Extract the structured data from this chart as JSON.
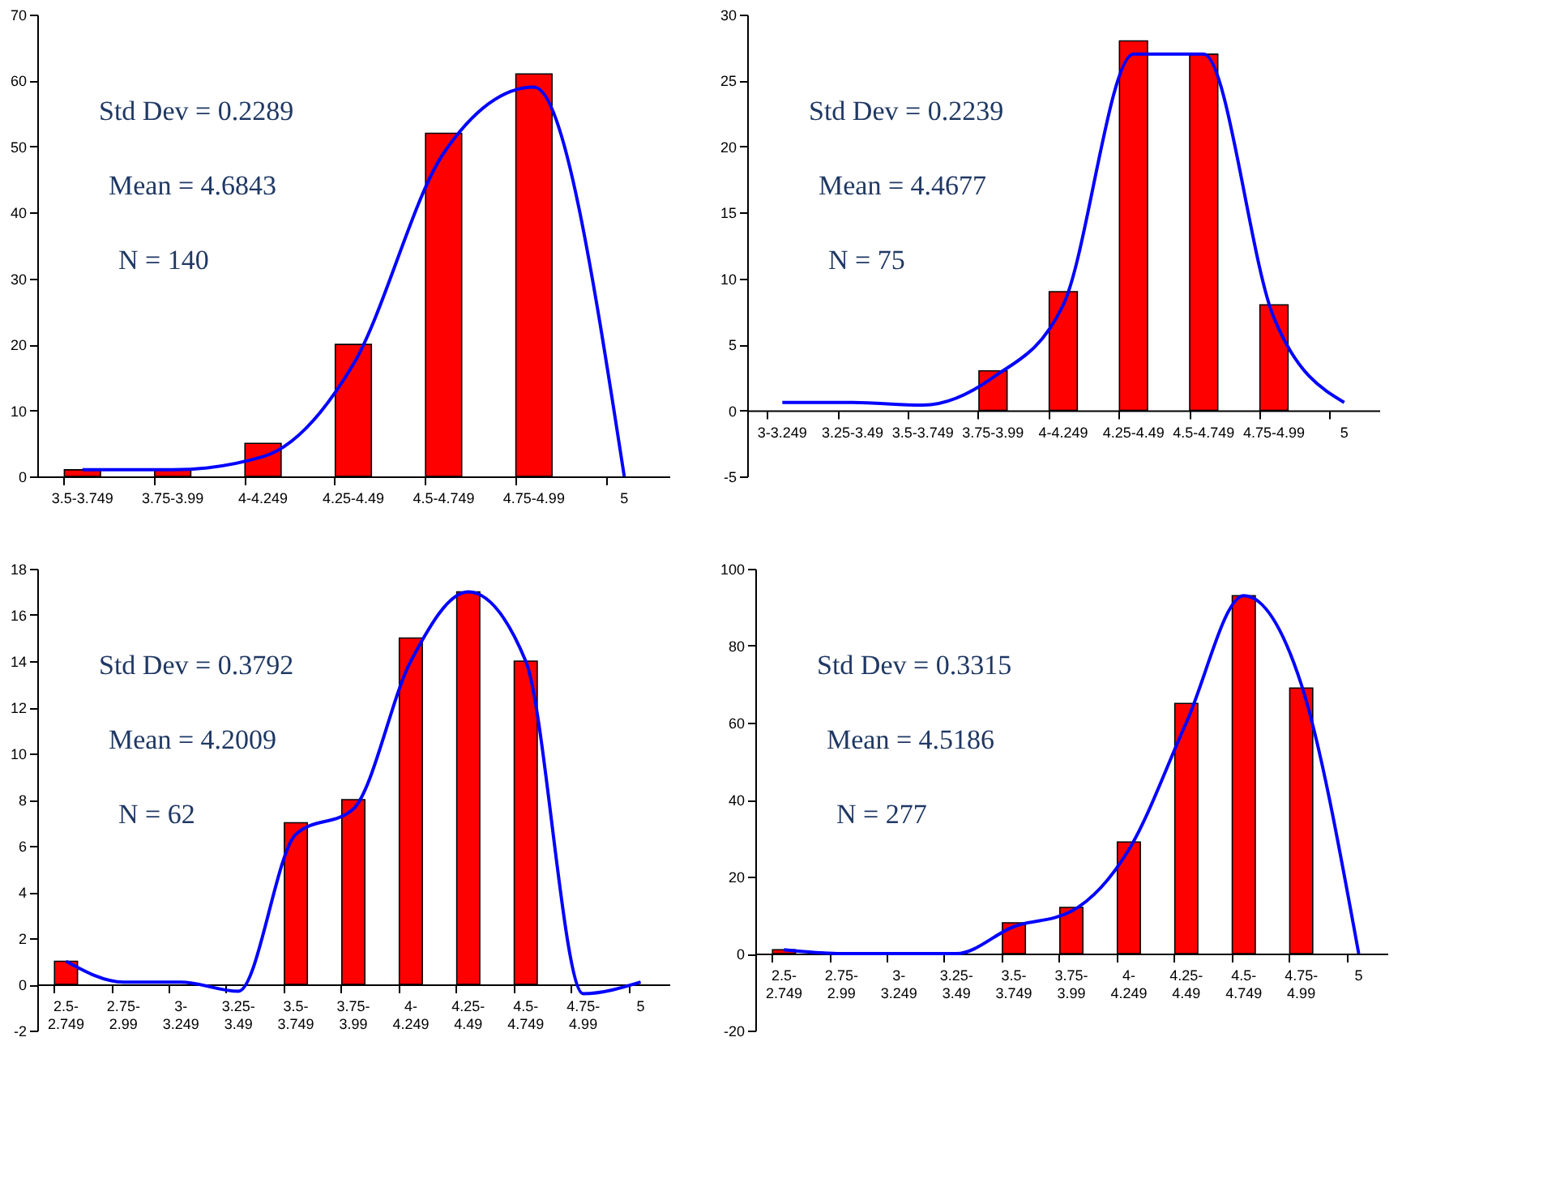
{
  "chart_data": [
    {
      "type": "bar",
      "categories": [
        "3.5-3.749",
        "3.75-3.99",
        "4-4.249",
        "4.25-4.49",
        "4.5-4.749",
        "4.75-4.99",
        "5"
      ],
      "series": [
        {
          "color": "#ff0000",
          "values": [
            1,
            1,
            5,
            20,
            52,
            61,
            0
          ]
        },
        {
          "type": "line",
          "color": "#0000ff",
          "values": [
            1,
            1,
            3,
            17,
            49,
            59,
            0
          ]
        }
      ],
      "ylim": [
        0,
        70
      ],
      "yticks": [
        0,
        10,
        20,
        30,
        40,
        50,
        60,
        70
      ],
      "grid": false,
      "annotations": [
        "Std  Dev = 0.2289",
        "Mean = 4.6843",
        "N = 140"
      ]
    },
    {
      "type": "bar",
      "categories": [
        "3-3.249",
        "3.25-3.49",
        "3.5-3.749",
        "3.75-3.99",
        "4-4.249",
        "4.25-4.49",
        "4.5-4.749",
        "4.75-4.99",
        "5"
      ],
      "series": [
        {
          "color": "#ff0000",
          "values": [
            0,
            0,
            0,
            3,
            9,
            28,
            27,
            8,
            0
          ]
        },
        {
          "type": "line",
          "color": "#0000ff",
          "values": [
            0.6,
            0.6,
            0.4,
            2.5,
            8,
            27,
            27,
            7,
            0.6
          ]
        }
      ],
      "ylim": [
        -5,
        30
      ],
      "yticks": [
        -5,
        0,
        5,
        10,
        15,
        20,
        25,
        30
      ],
      "grid": false,
      "annotations": [
        "Std  Dev = 0.2239",
        "Mean = 4.4677",
        "N = 75"
      ]
    },
    {
      "type": "bar",
      "categories": [
        "2.5-2.749",
        "2.75-2.99",
        "3-3.249",
        "3.25-3.49",
        "3.5-3.749",
        "3.75-3.99",
        "4-4.249",
        "4.25-4.49",
        "4.5-4.749",
        "4.75-4.99",
        "5"
      ],
      "series": [
        {
          "color": "#ff0000",
          "values": [
            1,
            0,
            0,
            0,
            7,
            8,
            15,
            17,
            14,
            0,
            0
          ]
        },
        {
          "type": "line",
          "color": "#0000ff",
          "values": [
            1,
            0.1,
            0.1,
            -0.3,
            6.5,
            7.6,
            14,
            17,
            14,
            -0.4,
            0.1
          ]
        }
      ],
      "ylim": [
        -2,
        18
      ],
      "yticks": [
        -2,
        0,
        2,
        4,
        6,
        8,
        10,
        12,
        14,
        16,
        18
      ],
      "grid": false,
      "annotations": [
        "Std  Dev = 0.3792",
        "Mean = 4.2009",
        "N = 62"
      ]
    },
    {
      "type": "bar",
      "categories": [
        "2.5-2.749",
        "2.75-2.99",
        "3-3.249",
        "3.25-3.49",
        "3.5-3.749",
        "3.75-3.99",
        "4-4.249",
        "4.25-4.49",
        "4.5-4.749",
        "4.75-4.99",
        "5"
      ],
      "series": [
        {
          "color": "#ff0000",
          "values": [
            1,
            0,
            0,
            0,
            8,
            12,
            29,
            65,
            93,
            69,
            0
          ]
        },
        {
          "type": "line",
          "color": "#0000ff",
          "values": [
            1,
            0,
            0,
            0,
            7,
            11,
            27,
            60,
            93,
            70,
            0
          ]
        }
      ],
      "ylim": [
        -20,
        100
      ],
      "yticks": [
        -20,
        0,
        20,
        40,
        60,
        80,
        100
      ],
      "grid": false,
      "annotations": [
        "Std  Dev = 0.3315",
        "Mean = 4.5186",
        "N = 277"
      ]
    }
  ]
}
